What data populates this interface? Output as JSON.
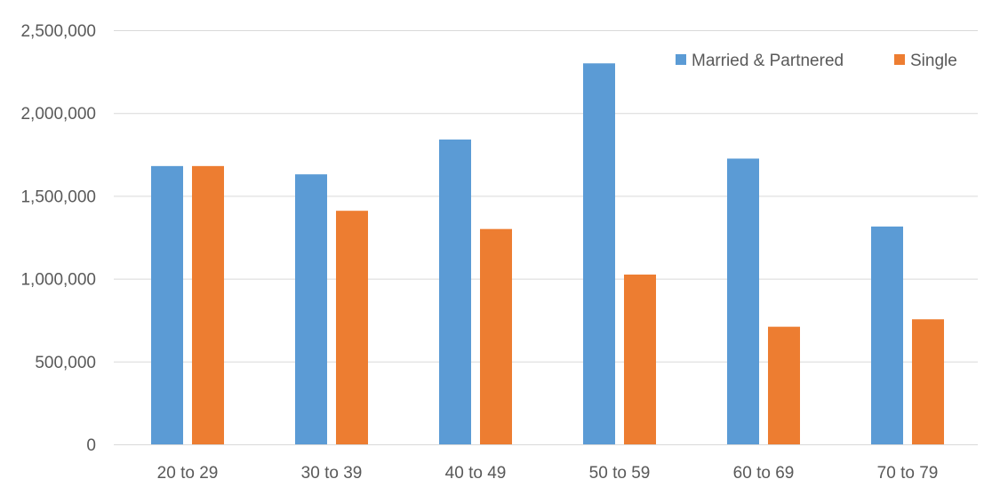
{
  "chart_data": {
    "type": "bar",
    "categories": [
      "20 to 29",
      "30 to 39",
      "40 to 49",
      "50 to 59",
      "60 to 69",
      "70 to 79"
    ],
    "series": [
      {
        "name": "Married & Partnered",
        "color": "#5b9bd5",
        "values": [
          1680000,
          1630000,
          1840000,
          2300000,
          1725000,
          1315000
        ]
      },
      {
        "name": "Single",
        "color": "#ed7d31",
        "values": [
          1680000,
          1410000,
          1300000,
          1025000,
          710000,
          755000
        ]
      }
    ],
    "y_ticks": [
      "0",
      "500,000",
      "1,000,000",
      "1,500,000",
      "2,000,000",
      "2,500,000"
    ],
    "ylim": [
      0,
      2500000
    ],
    "grid": true,
    "legend_position": "top-right"
  }
}
